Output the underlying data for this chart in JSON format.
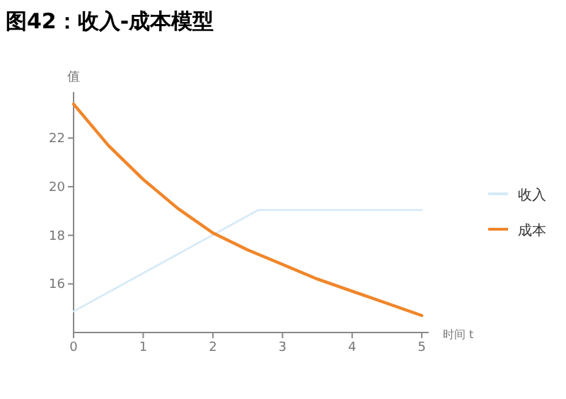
{
  "chart_data": {
    "type": "line",
    "title": "图42：收入-成本模型",
    "xlabel": "时间 t",
    "ylabel": "值",
    "xlim": [
      0,
      5.1
    ],
    "xticks": [
      0,
      1,
      2,
      3,
      4,
      5
    ],
    "ylim": [
      14,
      23.9
    ],
    "yticks": [
      16,
      18,
      20,
      22
    ],
    "legend": "right",
    "grid": false,
    "marker": "none",
    "line_style": "solid",
    "series": [
      {
        "name": "收入",
        "color": "#d6eaf8",
        "x": [
          0,
          2.65,
          5
        ],
        "values": [
          14.87,
          19.04,
          19.04
        ]
      },
      {
        "name": "成本",
        "color": "#f0862a",
        "x": [
          0,
          0.5,
          1,
          1.5,
          2,
          2.5,
          3,
          3.5,
          4,
          4.5,
          5
        ],
        "values": [
          23.4,
          21.7,
          20.3,
          19.1,
          18.1,
          17.4,
          16.8,
          16.2,
          15.7,
          15.2,
          14.7
        ]
      }
    ]
  }
}
